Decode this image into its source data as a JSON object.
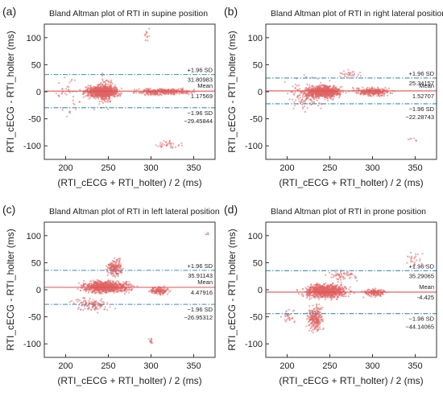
{
  "colors": {
    "points": "#e06666",
    "mean_line": "#e05050",
    "limit_lines": "#3a8fc0",
    "axes": "#333333"
  },
  "chart_data": [
    {
      "type": "scatter",
      "panel": "(a)",
      "title": "Bland Altman plot of RTI in supine position",
      "xlabel": "(RTI_cECG + RTI_holter) / 2 (ms)",
      "ylabel": "RTI_cECG - RTI_holter (ms)",
      "xlim": [
        175,
        375
      ],
      "ylim": [
        -125,
        125
      ],
      "xticks": [
        200,
        250,
        300,
        350
      ],
      "yticks": [
        -100,
        -50,
        0,
        50,
        100
      ],
      "mean": {
        "label": "Mean",
        "value": 1.17569,
        "value_text": "1.17569"
      },
      "upper_loa": {
        "label": "+1.96 SD",
        "value": 31.80983,
        "value_text": "31.80983"
      },
      "lower_loa": {
        "label": "−1.96 SD",
        "value": -29.45844,
        "value_text": "−29.45844"
      },
      "clusters": [
        {
          "x": [
            215,
            270
          ],
          "y": [
            -15,
            15
          ],
          "n": 900
        },
        {
          "x": [
            270,
            360
          ],
          "y": [
            -8,
            8
          ],
          "n": 350
        },
        {
          "x": [
            230,
            260
          ],
          "y": [
            -40,
            40
          ],
          "n": 150
        },
        {
          "x": [
            180,
            230
          ],
          "y": [
            -60,
            50
          ],
          "n": 40
        },
        {
          "x": [
            290,
            345
          ],
          "y": [
            -110,
            -85
          ],
          "n": 35
        },
        {
          "x": [
            290,
            300
          ],
          "y": [
            90,
            120
          ],
          "n": 12
        }
      ]
    },
    {
      "type": "scatter",
      "panel": "(b)",
      "title": "Bland Altman plot of RTI in right lateral position",
      "xlabel": "(RTI_cECG + RTI_holter) / 2 (ms)",
      "ylabel": "RTI_cECG - RTI_holter (ms)",
      "xlim": [
        175,
        375
      ],
      "ylim": [
        -125,
        125
      ],
      "xticks": [
        200,
        250,
        300,
        350
      ],
      "yticks": [
        -100,
        -50,
        0,
        50,
        100
      ],
      "mean": {
        "label": "Mean",
        "value": 1.52707,
        "value_text": "1.52707"
      },
      "upper_loa": {
        "label": "+1.96 SD",
        "value": 25.34157,
        "value_text": "25.34157"
      },
      "lower_loa": {
        "label": "−1.96 SD",
        "value": -22.28743,
        "value_text": "−22.28743"
      },
      "clusters": [
        {
          "x": [
            215,
            270
          ],
          "y": [
            -15,
            15
          ],
          "n": 800
        },
        {
          "x": [
            270,
            330
          ],
          "y": [
            -10,
            10
          ],
          "n": 300
        },
        {
          "x": [
            190,
            260
          ],
          "y": [
            -45,
            35
          ],
          "n": 150
        },
        {
          "x": [
            245,
            300
          ],
          "y": [
            20,
            45
          ],
          "n": 30
        },
        {
          "x": [
            340,
            355
          ],
          "y": [
            -95,
            -80
          ],
          "n": 6
        }
      ]
    },
    {
      "type": "scatter",
      "panel": "(c)",
      "title": "Bland Altman plot of RTI in left lateral position",
      "xlabel": "(RTI_cECG + RTI_holter) / 2 (ms)",
      "ylabel": "RTI_cECG - RTI_holter (ms)",
      "xlim": [
        175,
        375
      ],
      "ylim": [
        -125,
        125
      ],
      "xticks": [
        200,
        250,
        300,
        350
      ],
      "yticks": [
        -100,
        -50,
        0,
        50,
        100
      ],
      "mean": {
        "label": "Mean",
        "value": 4.47916,
        "value_text": "4.47916"
      },
      "upper_loa": {
        "label": "+1.96 SD",
        "value": 35.91143,
        "value_text": "35.91143"
      },
      "lower_loa": {
        "label": "−1.96 SD",
        "value": -26.95312,
        "value_text": "−26.95312"
      },
      "clusters": [
        {
          "x": [
            210,
            285
          ],
          "y": [
            -10,
            20
          ],
          "n": 900
        },
        {
          "x": [
            245,
            270
          ],
          "y": [
            20,
            60
          ],
          "n": 200
        },
        {
          "x": [
            295,
            325
          ],
          "y": [
            -12,
            8
          ],
          "n": 150
        },
        {
          "x": [
            200,
            260
          ],
          "y": [
            -45,
            -10
          ],
          "n": 120
        },
        {
          "x": [
            295,
            305
          ],
          "y": [
            -105,
            -80
          ],
          "n": 12
        },
        {
          "x": [
            360,
            370
          ],
          "y": [
            90,
            118
          ],
          "n": 4
        }
      ]
    },
    {
      "type": "scatter",
      "panel": "(d)",
      "title": "Bland Altman plot of RTI in prone position",
      "xlabel": "(RTI_cECG + RTI_holter) / 2 (ms)",
      "ylabel": "RTI_cECG - RTI_holter (ms)",
      "xlim": [
        175,
        375
      ],
      "ylim": [
        -125,
        125
      ],
      "xticks": [
        200,
        250,
        300,
        350
      ],
      "yticks": [
        -100,
        -50,
        0,
        50,
        100
      ],
      "mean": {
        "label": "Mean",
        "value": -4.425,
        "value_text": "-4.425"
      },
      "upper_loa": {
        "label": "+1.96 SD",
        "value": 35.29065,
        "value_text": "35.29065"
      },
      "lower_loa": {
        "label": "−1.96 SD",
        "value": -44.14065,
        "value_text": "−44.14065"
      },
      "clusters": [
        {
          "x": [
            210,
            280
          ],
          "y": [
            -20,
            15
          ],
          "n": 900
        },
        {
          "x": [
            220,
            245
          ],
          "y": [
            -85,
            -20
          ],
          "n": 250
        },
        {
          "x": [
            285,
            320
          ],
          "y": [
            -15,
            5
          ],
          "n": 150
        },
        {
          "x": [
            240,
            290
          ],
          "y": [
            10,
            40
          ],
          "n": 60
        },
        {
          "x": [
            335,
            365
          ],
          "y": [
            30,
            80
          ],
          "n": 25
        },
        {
          "x": [
            190,
            215
          ],
          "y": [
            -70,
            -30
          ],
          "n": 30
        }
      ]
    }
  ]
}
